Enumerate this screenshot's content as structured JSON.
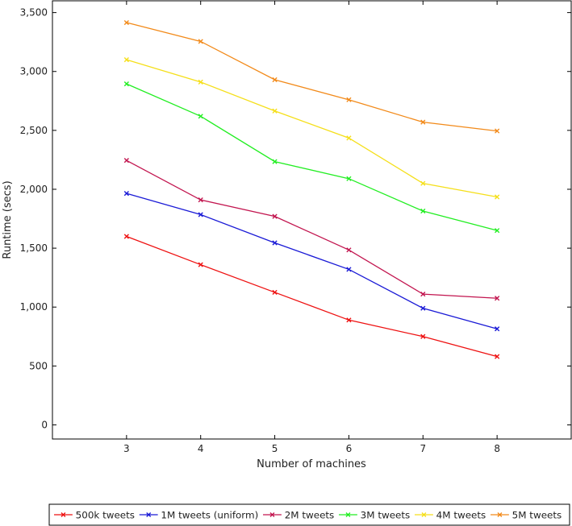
{
  "chart_data": {
    "type": "line",
    "xlabel": "Number of machines",
    "ylabel": "Runtime (secs)",
    "x": [
      3,
      4,
      5,
      6,
      7,
      8
    ],
    "xlim": [
      2,
      9
    ],
    "ylim": [
      -120,
      3600
    ],
    "x_ticks": [
      "3",
      "4",
      "5",
      "6",
      "7",
      "8"
    ],
    "y_ticks": [
      {
        "value": 0,
        "label": "0"
      },
      {
        "value": 500,
        "label": "500"
      },
      {
        "value": 1000,
        "label": "1,000"
      },
      {
        "value": 1500,
        "label": "1,500"
      },
      {
        "value": 2000,
        "label": "2,000"
      },
      {
        "value": 2500,
        "label": "2,500"
      },
      {
        "value": 3000,
        "label": "3,000"
      },
      {
        "value": 3500,
        "label": "3,500"
      }
    ],
    "grid": false,
    "legend_position": "bottom",
    "marker": "x",
    "series": [
      {
        "name": "500k tweets",
        "color": "#ee1111",
        "values": [
          1600,
          1360,
          1125,
          890,
          750,
          580
        ]
      },
      {
        "name": "1M tweets (uniform)",
        "color": "#1a1ad6",
        "values": [
          1965,
          1785,
          1545,
          1320,
          990,
          815
        ]
      },
      {
        "name": "2M tweets",
        "color": "#c2154f",
        "values": [
          2245,
          1910,
          1770,
          1485,
          1110,
          1075
        ]
      },
      {
        "name": "3M tweets",
        "color": "#22ee22",
        "values": [
          2895,
          2620,
          2235,
          2090,
          1815,
          1650
        ]
      },
      {
        "name": "4M tweets",
        "color": "#f5df1a",
        "values": [
          3100,
          2910,
          2665,
          2435,
          2050,
          1935
        ]
      },
      {
        "name": "5M tweets",
        "color": "#f28a1a",
        "values": [
          3415,
          3255,
          2930,
          2760,
          2570,
          2495
        ]
      }
    ]
  }
}
